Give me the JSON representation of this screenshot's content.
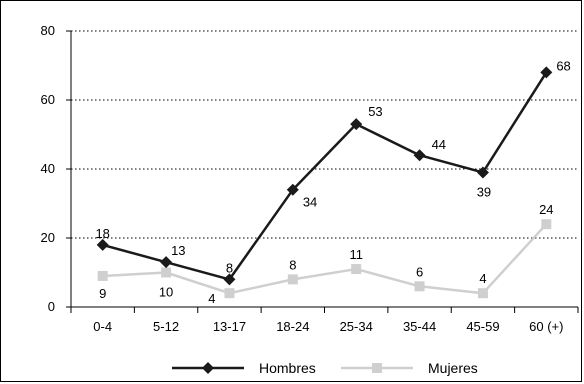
{
  "chart_data": {
    "type": "line",
    "categories": [
      "0-4",
      "5-12",
      "13-17",
      "18-24",
      "25-34",
      "35-44",
      "45-59",
      "60 (+)"
    ],
    "series": [
      {
        "name": "Hombres",
        "values": [
          18,
          13,
          8,
          34,
          53,
          44,
          39,
          68
        ],
        "labels": [
          "18",
          "13",
          "8",
          "34",
          "53",
          "44",
          "39",
          "68"
        ],
        "color": "#1a1a1a",
        "marker": "diamond"
      },
      {
        "name": "Mujeres",
        "values": [
          9,
          10,
          4,
          8,
          11,
          6,
          4,
          24
        ],
        "labels": [
          "9",
          "10",
          "4",
          "8",
          "11",
          "6",
          "4",
          "24"
        ],
        "color": "#cfcfcf",
        "marker": "square"
      }
    ],
    "y_ticks": [
      "0",
      "20",
      "40",
      "60",
      "80"
    ],
    "ylim": [
      0,
      80
    ],
    "grid": true,
    "legend_position": "bottom"
  }
}
